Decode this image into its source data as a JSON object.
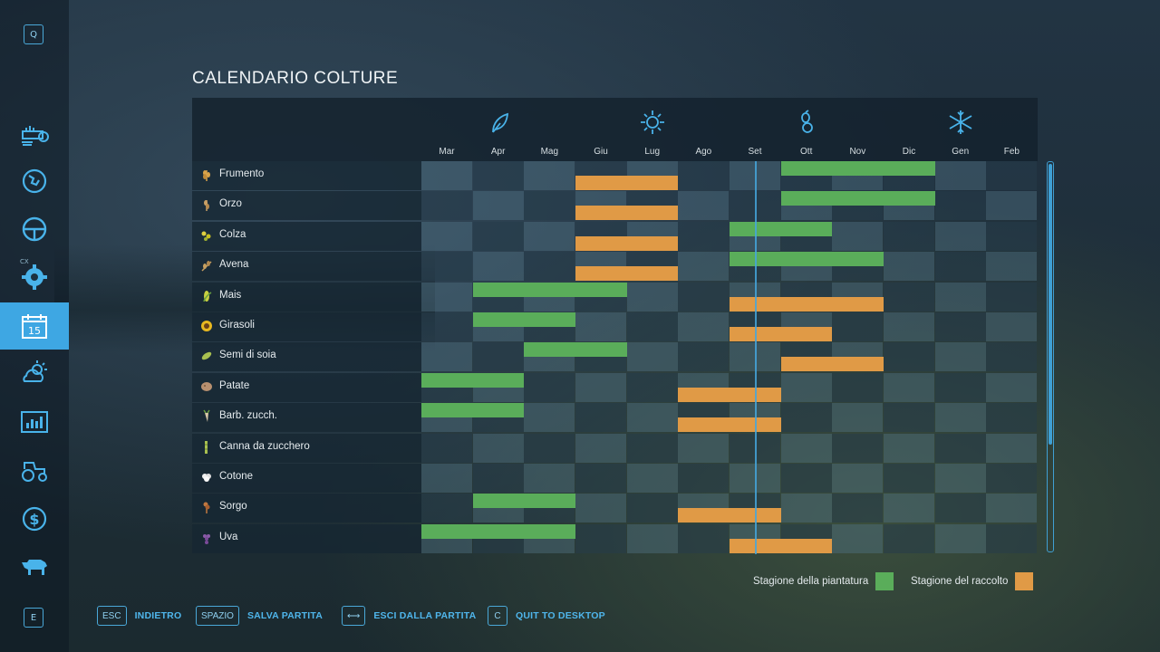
{
  "title": "CALENDARIO COLTURE",
  "sidebar": {
    "top_key": "Q",
    "bottom_key": "E",
    "cx_label": "CX",
    "items": [
      {
        "name": "sprayer-icon"
      },
      {
        "name": "map-icon"
      },
      {
        "name": "steering-wheel-icon"
      },
      {
        "name": "gear-icon"
      },
      {
        "name": "calendar-icon",
        "label": "15",
        "active": true
      },
      {
        "name": "weather-icon"
      },
      {
        "name": "statistics-icon"
      },
      {
        "name": "tractor-icon"
      },
      {
        "name": "finance-icon"
      },
      {
        "name": "animals-icon"
      }
    ]
  },
  "seasons": [
    "spring-leaf-icon",
    "summer-sun-icon",
    "autumn-seed-icon",
    "winter-snowflake-icon"
  ],
  "months": [
    "Mar",
    "Apr",
    "Mag",
    "Giu",
    "Lug",
    "Ago",
    "Set",
    "Ott",
    "Nov",
    "Dic",
    "Gen",
    "Feb"
  ],
  "crops": [
    {
      "name": "Frumento",
      "icon": "wheat-icon",
      "plant": [
        [
          7,
          10
        ]
      ],
      "harvest": [
        [
          3,
          5
        ]
      ]
    },
    {
      "name": "Orzo",
      "icon": "barley-icon",
      "plant": [
        [
          7,
          10
        ]
      ],
      "harvest": [
        [
          3,
          5
        ]
      ]
    },
    {
      "name": "Colza",
      "icon": "canola-icon",
      "plant": [
        [
          6,
          8
        ]
      ],
      "harvest": [
        [
          3,
          5
        ]
      ]
    },
    {
      "name": "Avena",
      "icon": "oat-icon",
      "plant": [
        [
          6,
          9
        ]
      ],
      "harvest": [
        [
          3,
          5
        ]
      ]
    },
    {
      "name": "Mais",
      "icon": "maize-icon",
      "plant": [
        [
          1,
          4
        ]
      ],
      "harvest": [
        [
          6,
          9
        ]
      ]
    },
    {
      "name": "Girasoli",
      "icon": "sunflower-icon",
      "plant": [
        [
          1,
          3
        ]
      ],
      "harvest": [
        [
          6,
          8
        ]
      ]
    },
    {
      "name": "Semi di soia",
      "icon": "soybean-icon",
      "plant": [
        [
          2,
          4
        ]
      ],
      "harvest": [
        [
          7,
          9
        ]
      ]
    },
    {
      "name": "Patate",
      "icon": "potato-icon",
      "plant": [
        [
          0,
          2
        ]
      ],
      "harvest": [
        [
          5,
          7
        ]
      ]
    },
    {
      "name": "Barb. zucch.",
      "icon": "sugarbeet-icon",
      "plant": [
        [
          0,
          2
        ]
      ],
      "harvest": [
        [
          5,
          7
        ]
      ]
    },
    {
      "name": "Canna da zucchero",
      "icon": "sugarcane-icon",
      "plant": [],
      "harvest": []
    },
    {
      "name": "Cotone",
      "icon": "cotton-icon",
      "plant": [],
      "harvest": []
    },
    {
      "name": "Sorgo",
      "icon": "sorghum-icon",
      "plant": [
        [
          1,
          3
        ]
      ],
      "harvest": [
        [
          5,
          7
        ]
      ]
    },
    {
      "name": "Uva",
      "icon": "grape-icon",
      "plant": [
        [
          0,
          3
        ]
      ],
      "harvest": [
        [
          6,
          8
        ]
      ]
    }
  ],
  "current_month": "Set",
  "legend": {
    "planting": "Stagione della piantatura",
    "harvest": "Stagione del raccolto",
    "planting_color": "#5aad5a",
    "harvest_color": "#e09a46"
  },
  "footer": [
    {
      "key": "ESC",
      "label": "INDIETRO"
    },
    {
      "key": "SPAZIO",
      "label": "SALVA PARTITA"
    },
    {
      "key": "⟷",
      "label": "ESCI DALLA PARTITA"
    },
    {
      "key": "C",
      "label": "QUIT TO DESKTOP"
    }
  ]
}
